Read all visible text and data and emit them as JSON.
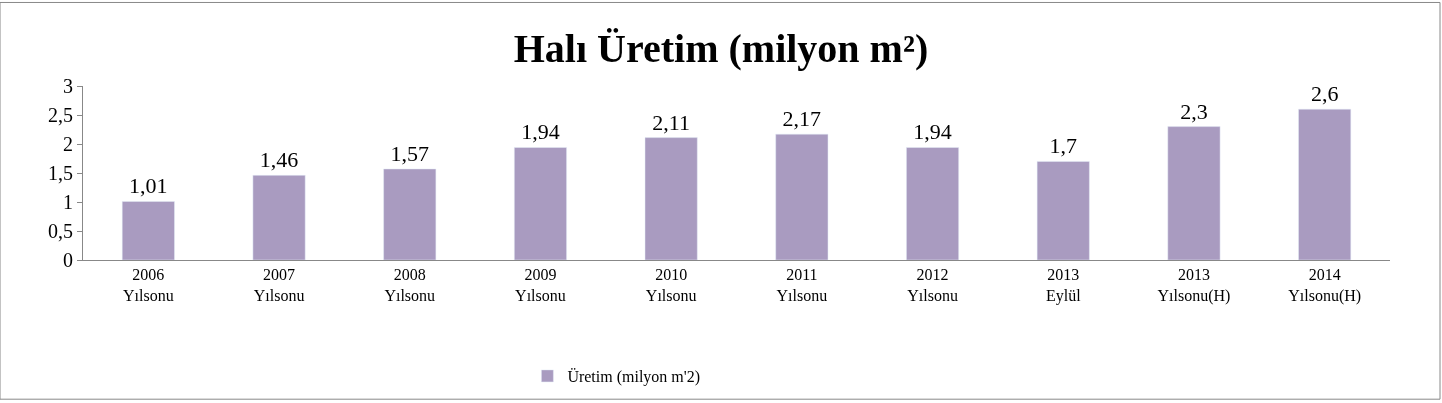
{
  "chart_data": {
    "type": "bar",
    "title": "Halı Üretim (milyon m²)",
    "categories": [
      "2006\nYılsonu",
      "2007\nYılsonu",
      "2008\nYılsonu",
      "2009\nYılsonu",
      "2010\nYılsonu",
      "2011\nYılsonu",
      "2012\nYılsonu",
      "2013\nEylül",
      "2013\nYılsonu(H)",
      "2014\nYılsonu(H)"
    ],
    "series": [
      {
        "name": "Üretim (milyon m'2)",
        "color": "#a99bc0",
        "values": [
          1.01,
          1.46,
          1.57,
          1.94,
          2.11,
          2.17,
          1.94,
          1.7,
          2.3,
          2.6
        ],
        "value_labels": [
          "1,01",
          "1,46",
          "1,57",
          "1,94",
          "2,11",
          "2,17",
          "1,94",
          "1,7",
          "2,3",
          "2,6"
        ]
      }
    ],
    "ylim": [
      0,
      3
    ],
    "yticks": [
      0,
      {
        "value": 0.5,
        "label": "0,5"
      },
      1,
      {
        "value": 1.5,
        "label": "1,5"
      },
      2,
      {
        "value": 2.5,
        "label": "2,5"
      },
      3
    ],
    "legend": "bottom"
  }
}
